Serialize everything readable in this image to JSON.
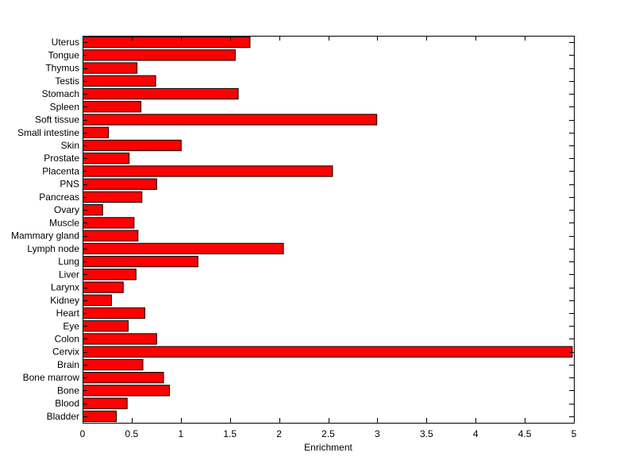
{
  "chart_data": {
    "type": "bar",
    "orientation": "horizontal",
    "categories": [
      "Bladder",
      "Blood",
      "Bone",
      "Bone marrow",
      "Brain",
      "Cervix",
      "Colon",
      "Eye",
      "Heart",
      "Kidney",
      "Larynx",
      "Liver",
      "Lung",
      "Lymph node",
      "Mammary gland",
      "Muscle",
      "Ovary",
      "Pancreas",
      "PNS",
      "Placenta",
      "Prostate",
      "Skin",
      "Small intestine",
      "Soft tissue",
      "Spleen",
      "Stomach",
      "Testis",
      "Thymus",
      "Tongue",
      "Uterus"
    ],
    "values": [
      0.34,
      0.45,
      0.88,
      0.82,
      0.61,
      4.98,
      0.75,
      0.46,
      0.63,
      0.29,
      0.41,
      0.54,
      1.17,
      2.04,
      0.56,
      0.52,
      0.2,
      0.6,
      0.75,
      2.54,
      0.47,
      1.0,
      0.26,
      2.99,
      0.59,
      1.58,
      0.74,
      0.55,
      1.55,
      1.7
    ],
    "xlabel": "Enrichment",
    "ylabel": "",
    "title": "",
    "xlim": [
      0,
      5
    ],
    "xticks": [
      "0",
      "0.5",
      "1",
      "1.5",
      "2",
      "2.5",
      "3",
      "3.5",
      "4",
      "4.5",
      "5"
    ],
    "bar_color": "#ff0000",
    "edge_color": "#000000",
    "grid": false,
    "legend": "none"
  }
}
